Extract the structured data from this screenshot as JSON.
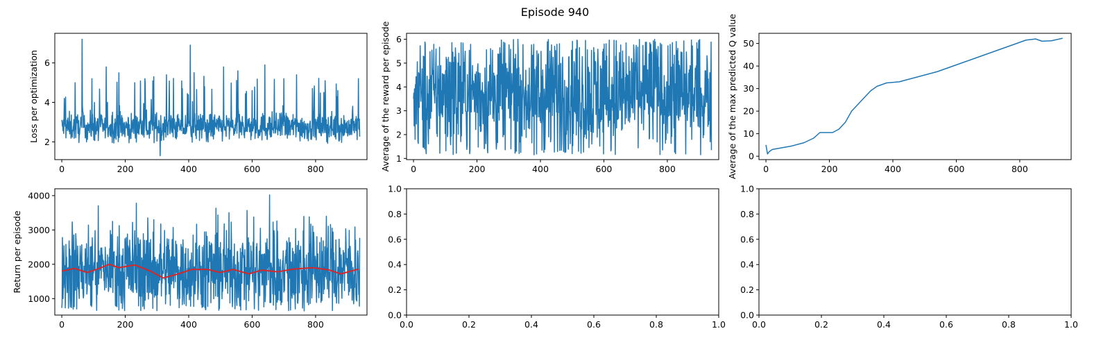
{
  "figure": {
    "title": "Episode 940"
  },
  "chart_data": [
    {
      "type": "line",
      "ylabel": "Loss per optimization",
      "xlim": [
        -22,
        962
      ],
      "ylim": [
        1.1,
        7.5
      ],
      "xticks": [
        0,
        200,
        400,
        600,
        800
      ],
      "yticks": [
        2,
        4,
        6
      ],
      "series": [
        {
          "color": "#1f77b4",
          "n": 940,
          "baseline": 2.75,
          "noise": 0.35,
          "floor": 1.9,
          "spikes": [
            [
              8,
              4.2
            ],
            [
              42,
              5.0
            ],
            [
              64,
              7.2
            ],
            [
              95,
              5.2
            ],
            [
              140,
              5.8
            ],
            [
              180,
              5.5
            ],
            [
              230,
              5.0
            ],
            [
              262,
              5.2
            ],
            [
              290,
              5.3
            ],
            [
              310,
              1.3
            ],
            [
              330,
              5.4
            ],
            [
              380,
              4.7
            ],
            [
              405,
              6.9
            ],
            [
              450,
              4.8
            ],
            [
              510,
              5.8
            ],
            [
              555,
              5.6
            ],
            [
              600,
              4.6
            ],
            [
              640,
              5.9
            ],
            [
              700,
              5.2
            ],
            [
              740,
              5.4
            ],
            [
              790,
              4.7
            ],
            [
              830,
              5.1
            ],
            [
              870,
              4.6
            ],
            [
              935,
              5.2
            ]
          ]
        }
      ]
    },
    {
      "type": "line",
      "ylabel": "Average of the reward per episode",
      "xlim": [
        -22,
        962
      ],
      "ylim": [
        0.95,
        6.25
      ],
      "xticks": [
        0,
        200,
        400,
        600,
        800
      ],
      "yticks": [
        1,
        2,
        3,
        4,
        5,
        6
      ],
      "series": [
        {
          "color": "#1f77b4",
          "n": 940,
          "center": 3.7,
          "spread": 1.3,
          "min": 1.15,
          "max": 6.0,
          "points": [
            [
              0,
              3.5
            ],
            [
              5,
              1.8
            ],
            [
              40,
              1.2
            ],
            [
              380,
              1.15
            ],
            [
              520,
              1.3
            ],
            [
              760,
              6.0
            ],
            [
              935,
              1.7
            ]
          ]
        }
      ]
    },
    {
      "type": "line",
      "ylabel": "Average of the max predicted Q value",
      "xlim": [
        -22,
        962
      ],
      "ylim": [
        -1.5,
        54.5
      ],
      "xticks": [
        0,
        200,
        400,
        600,
        800
      ],
      "yticks": [
        0,
        10,
        20,
        30,
        40,
        50
      ],
      "series": [
        {
          "color": "#1f77b4",
          "x": [
            0,
            5,
            10,
            20,
            40,
            80,
            120,
            150,
            170,
            210,
            230,
            250,
            270,
            290,
            310,
            330,
            350,
            380,
            420,
            460,
            500,
            540,
            580,
            620,
            660,
            700,
            740,
            780,
            820,
            850,
            870,
            900,
            935
          ],
          "y": [
            5,
            1,
            2,
            3,
            3.5,
            4.5,
            6,
            8,
            10.5,
            10.5,
            12,
            15,
            20,
            23,
            26,
            29,
            31,
            32.5,
            33,
            34.5,
            36,
            37.5,
            39.5,
            41.5,
            43.5,
            45.5,
            47.5,
            49.5,
            51.5,
            52,
            51,
            51.2,
            52.3
          ]
        }
      ]
    },
    {
      "type": "line",
      "ylabel": "Return per episode",
      "xlim": [
        -22,
        962
      ],
      "ylim": [
        520,
        4200
      ],
      "xticks": [
        0,
        200,
        400,
        600,
        800
      ],
      "yticks": [
        1000,
        2000,
        3000,
        4000
      ],
      "series": [
        {
          "color": "#1f77b4",
          "n": 940,
          "center": 1850,
          "spread": 650,
          "min": 640,
          "max": 4020,
          "points": [
            [
              160,
              3250
            ],
            [
              235,
              3780
            ],
            [
              290,
              3300
            ],
            [
              655,
              4020
            ],
            [
              780,
              3380
            ],
            [
              300,
              650
            ],
            [
              620,
              660
            ]
          ]
        },
        {
          "color": "#d62728",
          "kind": "moving-average",
          "x": [
            0,
            40,
            80,
            110,
            150,
            180,
            230,
            280,
            320,
            360,
            410,
            460,
            500,
            540,
            590,
            630,
            680,
            730,
            790,
            840,
            880,
            935
          ],
          "y": [
            1800,
            1880,
            1760,
            1850,
            2000,
            1900,
            1980,
            1800,
            1600,
            1700,
            1850,
            1850,
            1760,
            1850,
            1720,
            1830,
            1780,
            1860,
            1900,
            1840,
            1720,
            1860
          ]
        }
      ]
    },
    {
      "type": "line",
      "xlim": [
        0.0,
        1.0
      ],
      "ylim": [
        0.0,
        1.0
      ],
      "xticks": [
        "0.0",
        "0.2",
        "0.4",
        "0.6",
        "0.8",
        "1.0"
      ],
      "yticks": [
        "0.0",
        "0.2",
        "0.4",
        "0.6",
        "0.8",
        "1.0"
      ],
      "series": []
    },
    {
      "type": "line",
      "xlim": [
        0.0,
        1.0
      ],
      "ylim": [
        0.0,
        1.0
      ],
      "xticks": [
        "0.0",
        "0.2",
        "0.4",
        "0.6",
        "0.8",
        "1.0"
      ],
      "yticks": [
        "0.0",
        "0.2",
        "0.4",
        "0.6",
        "0.8",
        "1.0"
      ],
      "series": []
    }
  ]
}
